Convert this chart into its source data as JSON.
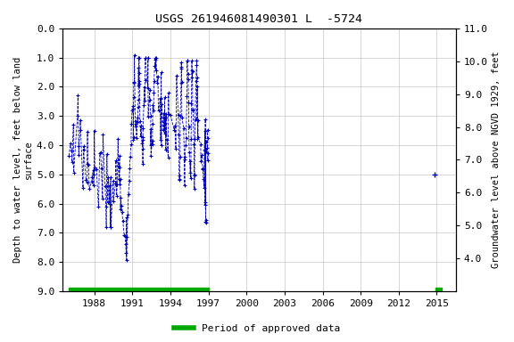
{
  "title": "USGS 261946081490301 L  -5724",
  "ylabel_left": "Depth to water level, feet below land\nsurface",
  "ylabel_right": "Groundwater level above NGVD 1929, feet",
  "xlim_years": [
    1985.5,
    2016.5
  ],
  "ylim_left": [
    9.0,
    0.0
  ],
  "ylim_right": [
    3.0,
    11.0
  ],
  "yticks_left": [
    0.0,
    1.0,
    2.0,
    3.0,
    4.0,
    5.0,
    6.0,
    7.0,
    8.0,
    9.0
  ],
  "yticks_right": [
    4.0,
    5.0,
    6.0,
    7.0,
    8.0,
    9.0,
    10.0,
    11.0
  ],
  "xticks": [
    1988,
    1991,
    1994,
    1997,
    2000,
    2003,
    2006,
    2009,
    2012,
    2015
  ],
  "data_color": "#0000bb",
  "approved_color": "#00aa00",
  "background_color": "#ffffff",
  "plot_bg_color": "#ffffff",
  "grid_color": "#c8c8c8",
  "approved_period1_start": 1986.0,
  "approved_period1_end": 1997.0,
  "approved_period2_start": 2014.9,
  "approved_period2_end": 2015.4,
  "lone_point_x": 2014.8,
  "lone_point_y": 5.0,
  "title_fontsize": 9.5,
  "tick_fontsize": 8,
  "label_fontsize": 7.5
}
